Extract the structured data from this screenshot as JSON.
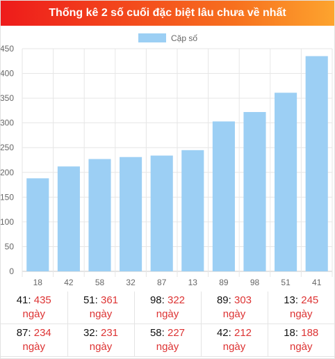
{
  "header": {
    "title": "Thống kê 2 số cuối đặc biệt lâu chưa về nhất"
  },
  "chart_data": {
    "type": "bar",
    "title": "",
    "xlabel": "",
    "ylabel": "",
    "categories": [
      "18",
      "42",
      "58",
      "32",
      "87",
      "13",
      "89",
      "98",
      "51",
      "41"
    ],
    "series": [
      {
        "name": "Cặp số",
        "values": [
          188,
          212,
          227,
          231,
          234,
          245,
          303,
          322,
          361,
          435
        ],
        "color": "#9ccff4"
      }
    ],
    "ylim": [
      0,
      450
    ],
    "yticks": [
      0,
      50,
      100,
      150,
      200,
      250,
      300,
      350,
      400,
      450
    ],
    "grid": true,
    "legend": "top-center"
  },
  "table": {
    "unit": "ngày",
    "separator": ": ",
    "rows": [
      [
        {
          "num": "41",
          "value": "435"
        },
        {
          "num": "51",
          "value": "361"
        },
        {
          "num": "98",
          "value": "322"
        },
        {
          "num": "89",
          "value": "303"
        },
        {
          "num": "13",
          "value": "245"
        }
      ],
      [
        {
          "num": "87",
          "value": "234"
        },
        {
          "num": "32",
          "value": "231"
        },
        {
          "num": "58",
          "value": "227"
        },
        {
          "num": "42",
          "value": "212"
        },
        {
          "num": "18",
          "value": "188"
        }
      ]
    ]
  }
}
